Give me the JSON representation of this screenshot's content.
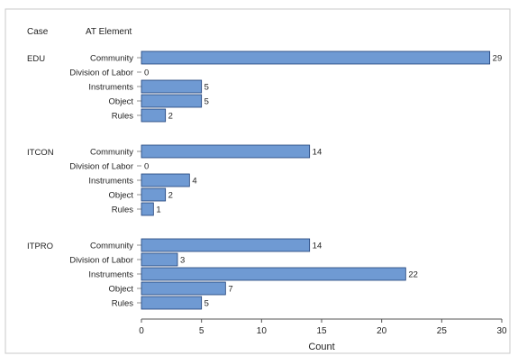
{
  "chart_data": {
    "type": "bar",
    "orientation": "horizontal",
    "header": {
      "group_col": "Case",
      "category_col": "AT Element"
    },
    "xlabel": "Count",
    "xlim": [
      0,
      30
    ],
    "xticks": [
      0,
      5,
      10,
      15,
      20,
      25,
      30
    ],
    "grid": false,
    "groups": [
      {
        "name": "EDU",
        "categories": [
          "Community",
          "Division of Labor",
          "Instruments",
          "Object",
          "Rules"
        ],
        "values": [
          29,
          0,
          5,
          5,
          2
        ]
      },
      {
        "name": "ITCON",
        "categories": [
          "Community",
          "Division of Labor",
          "Instruments",
          "Object",
          "Rules"
        ],
        "values": [
          14,
          0,
          4,
          2,
          1
        ]
      },
      {
        "name": "ITPRO",
        "categories": [
          "Community",
          "Division of Labor",
          "Instruments",
          "Object",
          "Rules"
        ],
        "values": [
          14,
          3,
          22,
          7,
          5
        ]
      }
    ],
    "bar_color": "#6f9ad3",
    "bar_stroke": "#1e3f78",
    "frame_color": "#c8c8c8"
  }
}
